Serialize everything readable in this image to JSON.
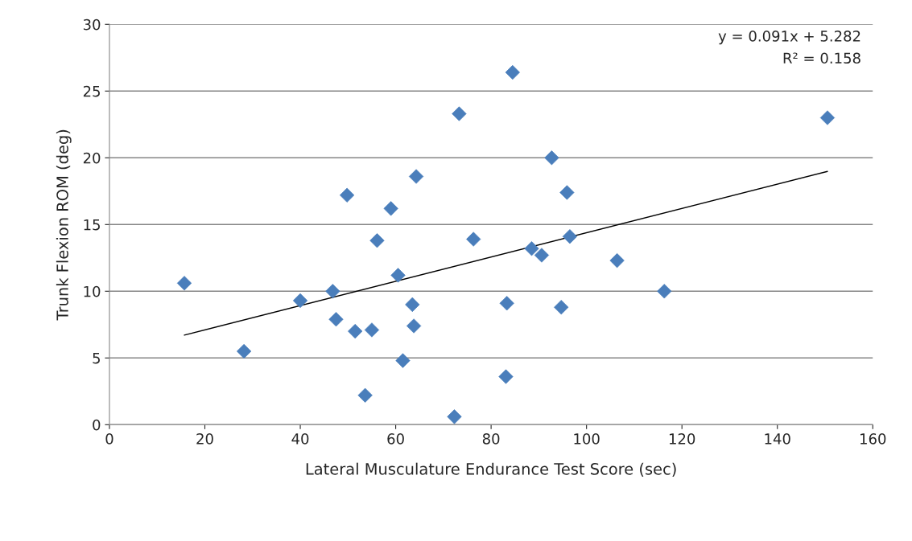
{
  "chart_data": {
    "type": "scatter",
    "xlabel": "Lateral Musculature Endurance Test Score (sec)",
    "ylabel": "Trunk Flexion ROM (deg)",
    "series": [
      {
        "color": "#4a7ebb",
        "marker": "diamond",
        "x": [
          15.7,
          28.2,
          40,
          46.8,
          47.5,
          49.8,
          51.5,
          53.6,
          55,
          56.1,
          59,
          60.5,
          61.5,
          63.5,
          63.8,
          64.3,
          72.3,
          73.3,
          76.3,
          83.1,
          83.3,
          84.5,
          88.5,
          90.6,
          92.7,
          94.7,
          95.9,
          96.5,
          106.4,
          116.3,
          150.5
        ],
        "values": [
          10.6,
          5.5,
          9.3,
          10.0,
          7.9,
          17.2,
          7.0,
          2.2,
          7.1,
          13.8,
          16.2,
          11.2,
          4.8,
          9.0,
          7.4,
          18.6,
          0.6,
          23.3,
          13.9,
          3.6,
          9.1,
          26.4,
          13.2,
          12.7,
          20.0,
          8.8,
          17.4,
          14.1,
          12.3,
          10.0,
          23.0
        ]
      },
      {
        "type": "line",
        "color": "#000000",
        "marker": "none",
        "x": [
          15.7,
          150.5
        ],
        "values": [
          6.71,
          18.98
        ]
      }
    ],
    "annotations": [
      "y = 0.091x + 5.282",
      "R² = 0.158"
    ],
    "xlim": [
      0,
      160
    ],
    "xticks": [
      0,
      20,
      40,
      60,
      80,
      100,
      120,
      140,
      160
    ],
    "ylim": [
      0,
      30
    ],
    "yticks": [
      0,
      5,
      10,
      15,
      20,
      25,
      30
    ],
    "grid": "y",
    "legend": false
  }
}
